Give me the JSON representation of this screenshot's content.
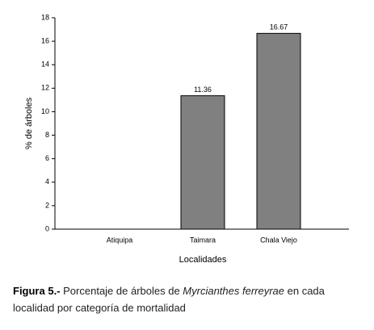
{
  "chart_data": {
    "type": "bar",
    "x_label": "Localidades",
    "y_label": "% de árboles",
    "categories": [
      "Atiquipa",
      "Taimara",
      "Chala Viejo"
    ],
    "values": [
      0,
      11.36,
      16.67
    ],
    "color": "#808080",
    "ylim": [
      0,
      18
    ],
    "yticks": [
      0,
      2,
      4,
      6,
      8,
      10,
      12,
      14,
      16,
      18
    ]
  },
  "caption": {
    "label": "Figura 5.-",
    "text_before": "Porcentaje de árboles de ",
    "species": "Myrcianthes ferreyrae",
    "text_after": " en cada localidad por categoría de mortalidad"
  }
}
